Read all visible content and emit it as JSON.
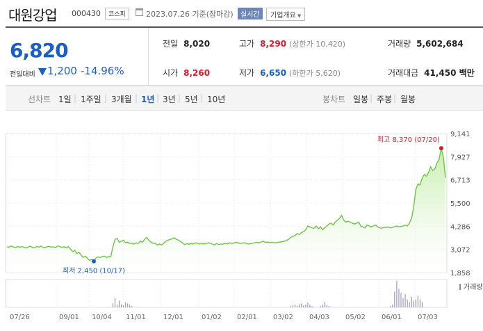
{
  "header": {
    "name": "대원강업",
    "code": "000430",
    "market": "코스피",
    "date": "2023.07.26 기준(장마감)",
    "realtime": "실시간",
    "info_btn": "기업개요"
  },
  "price": {
    "current": "6,820",
    "change_label": "전일대비",
    "change": "1,200",
    "change_pct": "-14.96%",
    "prev_label": "전일",
    "prev": "8,020",
    "high_label": "고가",
    "high": "8,290",
    "upper_limit": "(상한가 10,420)",
    "volume_label": "거래량",
    "volume": "5,602,684",
    "open_label": "시가",
    "open": "8,260",
    "low_label": "저가",
    "low": "6,650",
    "lower_limit": "(하한가 5,620)",
    "amount_label": "거래대금",
    "amount": "41,450 백만"
  },
  "periods": {
    "line_label": "선차트",
    "items": [
      "1일",
      "1주일",
      "3개월",
      "1년",
      "3년",
      "5년",
      "10년"
    ],
    "selected": "1년",
    "candle_label": "봉차트",
    "candle_items": [
      "일봉",
      "주봉",
      "월봉"
    ]
  },
  "colors": {
    "line": "#6cc644",
    "fill_top": "#c7eeb0",
    "high": "#e0182b",
    "low": "#1a5fc8",
    "volume": "#8b7fc7"
  },
  "chart_data": {
    "type": "area",
    "y_ticks": [
      "9,141",
      "7,927",
      "6,713",
      "5,500",
      "4,286",
      "3,072",
      "1,858"
    ],
    "ylim": [
      1858,
      9141
    ],
    "x_ticks": [
      "07/26",
      "09/01",
      "10/04",
      "11/01",
      "12/01",
      "01/02",
      "02/01",
      "03/02",
      "04/03",
      "05/02",
      "06/01",
      "07/03"
    ],
    "high_label": "최고 8,370 (07/20)",
    "low_label": "최저 2,450 (10/17)",
    "volume_label": "거래량",
    "series": [
      {
        "values": [
          3210,
          3190,
          3250,
          3200,
          3160,
          3230,
          3180,
          3220,
          3190,
          3150,
          3200,
          3240,
          3180,
          3160,
          3220,
          3190,
          3250,
          3180,
          3160,
          3210,
          3230,
          3190,
          3200,
          3170,
          3260,
          3220,
          3180,
          3210,
          3150,
          3220,
          3100,
          2950,
          3020,
          2850,
          2920,
          2780,
          2650,
          2720,
          2600,
          2500,
          2550,
          2450,
          2620,
          2680,
          2640,
          2700,
          2720,
          2650,
          2700,
          2680,
          3200,
          3600,
          3650,
          3450,
          3500,
          3550,
          3420,
          3460,
          3380,
          3400,
          3350,
          3420,
          3380,
          3500,
          3450,
          3600,
          3700,
          3550,
          3450,
          3400,
          3380,
          3300,
          3360,
          3300,
          3400,
          3500,
          3550,
          3600,
          3620,
          3680,
          3600,
          3550,
          3480,
          3400,
          3320,
          3380,
          3340,
          3400,
          3350,
          3420,
          3380,
          3360,
          3400,
          3350,
          3380,
          3420,
          3400,
          3350,
          3300,
          3380,
          3320,
          3360,
          3340,
          3400,
          3360,
          3420,
          3380,
          3400,
          3450,
          3420,
          3380,
          3400,
          3420,
          3380,
          3350,
          3380,
          3400,
          3420,
          3440,
          3420,
          3460,
          3500,
          3440,
          3460,
          3420,
          3450,
          3430,
          3420,
          3440,
          3460,
          3480,
          3500,
          3550,
          3600,
          3700,
          3750,
          3800,
          3900,
          3850,
          3950,
          4000,
          4100,
          4300,
          4250,
          4200,
          4180,
          4300,
          4150,
          4250,
          4100,
          4200,
          4300,
          4400,
          4450,
          4350,
          4500,
          4600,
          4700,
          4850,
          4600,
          4500,
          4550,
          4500,
          4450,
          4400,
          4450,
          4500,
          4300,
          4250,
          4200,
          4350,
          4300,
          4250,
          4300,
          4350,
          4250,
          4200,
          4180,
          4230,
          4210,
          4250,
          4200,
          4230,
          4260,
          4300,
          4250,
          4280,
          4300,
          4350,
          4300,
          4450,
          4700,
          5300,
          6200,
          6500,
          6450,
          6800,
          7000,
          6900,
          7100,
          7400,
          7200,
          7300,
          7600,
          7800,
          8370,
          7900,
          6820
        ]
      },
      {
        "volume": [
          0,
          0,
          0,
          0,
          0,
          0,
          0,
          0,
          0,
          0,
          0,
          0,
          0,
          0,
          0,
          0,
          0,
          0,
          0,
          0,
          0,
          0,
          0,
          0,
          0,
          0,
          0,
          0,
          0,
          0,
          0,
          0,
          0,
          0,
          0,
          0,
          0,
          0,
          0,
          0,
          0,
          0,
          0,
          0,
          0,
          0,
          0,
          0,
          0,
          0,
          0.15,
          0.35,
          0.1,
          0.25,
          0.12,
          0.08,
          0.2,
          0.15,
          0.1,
          0.05,
          0,
          0,
          0,
          0,
          0,
          0,
          0,
          0,
          0,
          0,
          0,
          0,
          0,
          0,
          0,
          0,
          0,
          0,
          0,
          0,
          0,
          0,
          0,
          0,
          0,
          0,
          0,
          0,
          0,
          0,
          0,
          0,
          0,
          0,
          0,
          0,
          0,
          0,
          0,
          0,
          0,
          0,
          0,
          0,
          0,
          0,
          0,
          0,
          0,
          0,
          0,
          0,
          0,
          0,
          0,
          0,
          0,
          0,
          0,
          0,
          0,
          0,
          0,
          0,
          0,
          0,
          0,
          0,
          0,
          0,
          0,
          0,
          0,
          0,
          0.05,
          0.08,
          0.1,
          0.06,
          0.12,
          0.15,
          0.08,
          0.1,
          0.18,
          0.1,
          0.05,
          0,
          0,
          0,
          0.05,
          0.1,
          0.2,
          0.08,
          0.05,
          0,
          0,
          0,
          0,
          0,
          0,
          0,
          0,
          0,
          0,
          0,
          0,
          0,
          0,
          0,
          0,
          0,
          0,
          0,
          0,
          0,
          0,
          0,
          0,
          0,
          0,
          0,
          0,
          0.05,
          0.1,
          0.6,
          1.0,
          0.7,
          0.55,
          0.35,
          0.5,
          0.3,
          0.2,
          0.4,
          0.25,
          0.3,
          0.45,
          0.3,
          0.2
        ]
      }
    ]
  }
}
